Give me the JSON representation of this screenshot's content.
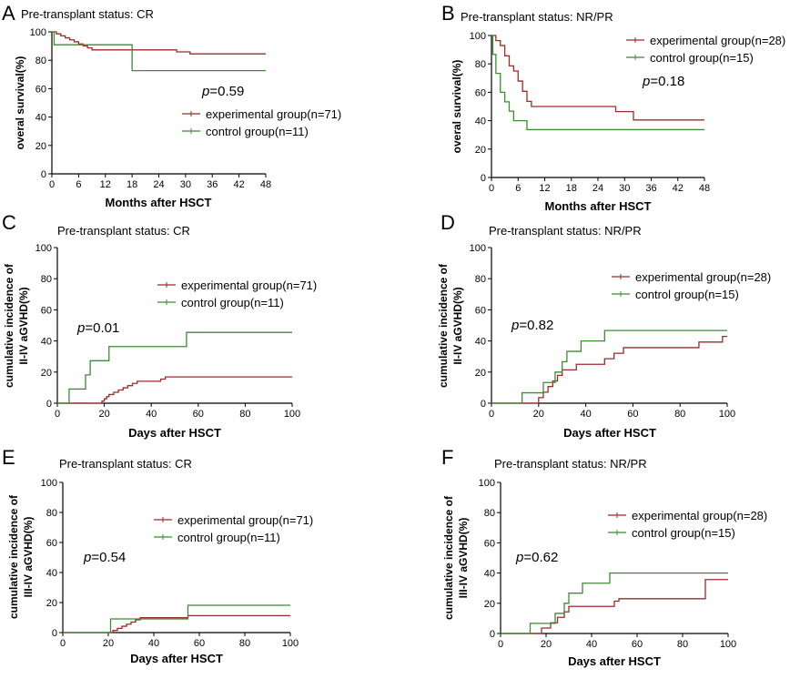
{
  "colors": {
    "experimental": "#9c2b2b",
    "control": "#3d8b33",
    "axis": "#000000"
  },
  "chart_data": [
    {
      "panel": "A",
      "type": "line",
      "subtitle": "Pre-transplant status: CR",
      "xlabel": "Months after HSCT",
      "ylabel": [
        "overal survival(%)"
      ],
      "xlim": [
        0,
        48
      ],
      "ylim": [
        0,
        100
      ],
      "xticks": [
        0,
        6,
        12,
        18,
        24,
        30,
        36,
        42,
        48
      ],
      "yticks": [
        0,
        20,
        40,
        60,
        80,
        100
      ],
      "p_prefix": "p",
      "p_value": "=0.59",
      "p_at": [
        22,
        58
      ],
      "legend_at": [
        22,
        42
      ],
      "series": [
        {
          "name": "experimental group(n=71)",
          "color_key": "experimental",
          "steps": [
            [
              0,
              100
            ],
            [
              1,
              98.6
            ],
            [
              2,
              97.2
            ],
            [
              3,
              95.8
            ],
            [
              4,
              94.4
            ],
            [
              5,
              93
            ],
            [
              6,
              91.5
            ],
            [
              7,
              90.1
            ],
            [
              8,
              88.7
            ],
            [
              9,
              87.3
            ],
            [
              28,
              85.9
            ],
            [
              31,
              84.5
            ],
            [
              48,
              84.5
            ]
          ]
        },
        {
          "name": "control group(n=11)",
          "color_key": "control",
          "steps": [
            [
              0,
              100
            ],
            [
              0.5,
              90.9
            ],
            [
              18,
              72.7
            ],
            [
              48,
              72.7
            ]
          ]
        }
      ]
    },
    {
      "panel": "B",
      "type": "line",
      "subtitle": "Pre-transplant status: NR/PR",
      "xlabel": "Months after HSCT",
      "ylabel": [
        "overal survival(%)"
      ],
      "xlim": [
        0,
        48
      ],
      "ylim": [
        0,
        100
      ],
      "xticks": [
        0,
        6,
        12,
        18,
        24,
        30,
        36,
        42,
        48
      ],
      "yticks": [
        0,
        20,
        40,
        60,
        80,
        100
      ],
      "p_prefix": "p",
      "p_value": "=0.18",
      "p_at": [
        25,
        65
      ],
      "legend_at": [
        22,
        95
      ],
      "series": [
        {
          "name": "experimental group(n=28)",
          "color_key": "experimental",
          "steps": [
            [
              0,
              100
            ],
            [
              1,
              96.4
            ],
            [
              2,
              92.9
            ],
            [
              3,
              85.7
            ],
            [
              4,
              78.6
            ],
            [
              5,
              75
            ],
            [
              6,
              67.9
            ],
            [
              7,
              60.7
            ],
            [
              8,
              53.6
            ],
            [
              9,
              50
            ],
            [
              28,
              46.4
            ],
            [
              32,
              40.5
            ],
            [
              48,
              40.5
            ]
          ]
        },
        {
          "name": "control group(n=15)",
          "color_key": "control",
          "steps": [
            [
              0,
              100
            ],
            [
              0.3,
              86.7
            ],
            [
              1,
              73.3
            ],
            [
              2,
              60
            ],
            [
              3,
              53.3
            ],
            [
              4,
              46.7
            ],
            [
              5,
              40
            ],
            [
              8,
              33.7
            ],
            [
              48,
              33.7
            ]
          ]
        }
      ]
    },
    {
      "panel": "C",
      "type": "line",
      "subtitle": "Pre-transplant status: CR",
      "xlabel": "Days after HSCT",
      "ylabel": [
        "cumulative incidence of",
        "II-IV aGVHD(%)"
      ],
      "xlim": [
        0,
        100
      ],
      "ylim": [
        0,
        100
      ],
      "xticks": [
        0,
        20,
        40,
        60,
        80,
        100
      ],
      "yticks": [
        0,
        20,
        40,
        60,
        80,
        100
      ],
      "p_prefix": "p",
      "p_value": "=0.01",
      "p_at": [
        10,
        46
      ],
      "legend_at": [
        40,
        80
      ],
      "series": [
        {
          "name": "experimental group(n=71)",
          "color_key": "experimental",
          "steps": [
            [
              0,
              0
            ],
            [
              18,
              0
            ],
            [
              19,
              1.4
            ],
            [
              20,
              2.8
            ],
            [
              21,
              4.2
            ],
            [
              22,
              5.6
            ],
            [
              24,
              7
            ],
            [
              26,
              8.5
            ],
            [
              28,
              9.9
            ],
            [
              30,
              11.3
            ],
            [
              32,
              12.7
            ],
            [
              34,
              14.1
            ],
            [
              44,
              15.5
            ],
            [
              46,
              16.9
            ],
            [
              100,
              16.9
            ]
          ]
        },
        {
          "name": "control group(n=11)",
          "color_key": "control",
          "steps": [
            [
              0,
              0
            ],
            [
              5,
              9.1
            ],
            [
              12,
              18.2
            ],
            [
              14,
              27.3
            ],
            [
              22,
              36.4
            ],
            [
              55,
              45.5
            ],
            [
              100,
              45.5
            ]
          ]
        }
      ]
    },
    {
      "panel": "D",
      "type": "line",
      "subtitle": "Pre-transplant status: NR/PR",
      "xlabel": "Days after HSCT",
      "ylabel": [
        "cumulative incidence of",
        "II-IV aGVHD(%)"
      ],
      "xlim": [
        0,
        100
      ],
      "ylim": [
        0,
        100
      ],
      "xticks": [
        0,
        20,
        40,
        60,
        80,
        100
      ],
      "yticks": [
        0,
        20,
        40,
        60,
        80,
        100
      ],
      "p_prefix": "p",
      "p_value": "=0.82",
      "p_at": [
        8,
        48
      ],
      "legend_at": [
        48,
        84
      ],
      "series": [
        {
          "name": "experimental group(n=28)",
          "color_key": "experimental",
          "steps": [
            [
              0,
              0
            ],
            [
              18,
              0
            ],
            [
              20,
              3.6
            ],
            [
              22,
              7.1
            ],
            [
              24,
              10.7
            ],
            [
              26,
              14.3
            ],
            [
              28,
              17.9
            ],
            [
              30,
              21.4
            ],
            [
              36,
              25
            ],
            [
              48,
              28.6
            ],
            [
              52,
              32.1
            ],
            [
              56,
              35.7
            ],
            [
              88,
              39.3
            ],
            [
              98,
              42.9
            ],
            [
              100,
              42.9
            ]
          ]
        },
        {
          "name": "control group(n=15)",
          "color_key": "control",
          "steps": [
            [
              0,
              0
            ],
            [
              13,
              6.7
            ],
            [
              22,
              13.3
            ],
            [
              27,
              20
            ],
            [
              30,
              26.7
            ],
            [
              32,
              33.3
            ],
            [
              38,
              40
            ],
            [
              48,
              46.7
            ],
            [
              100,
              46.7
            ]
          ]
        }
      ]
    },
    {
      "panel": "E",
      "type": "line",
      "subtitle": "Pre-transplant status: CR",
      "xlabel": "Days after HSCT",
      "ylabel": [
        "cumulative incidence of",
        "III-IV aGVHD(%)"
      ],
      "xlim": [
        0,
        100
      ],
      "ylim": [
        0,
        100
      ],
      "xticks": [
        0,
        20,
        40,
        60,
        80,
        100
      ],
      "yticks": [
        0,
        20,
        40,
        60,
        80,
        100
      ],
      "p_prefix": "p",
      "p_value": "=0.54",
      "p_at": [
        8,
        38
      ],
      "legend_at": [
        40,
        75
      ],
      "series": [
        {
          "name": "experimental group(n=71)",
          "color_key": "experimental",
          "steps": [
            [
              0,
              0
            ],
            [
              20,
              0
            ],
            [
              22,
              1.4
            ],
            [
              24,
              2.8
            ],
            [
              26,
              4.2
            ],
            [
              28,
              5.6
            ],
            [
              30,
              7
            ],
            [
              32,
              8.5
            ],
            [
              34,
              9.9
            ],
            [
              55,
              11.3
            ],
            [
              100,
              11.3
            ]
          ]
        },
        {
          "name": "control group(n=11)",
          "color_key": "control",
          "steps": [
            [
              0,
              0
            ],
            [
              21,
              9.1
            ],
            [
              55,
              18.2
            ],
            [
              100,
              18.2
            ]
          ]
        }
      ]
    },
    {
      "panel": "F",
      "type": "line",
      "subtitle": "Pre-transplant status: NR/PR",
      "xlabel": "Days after HSCT",
      "ylabel": [
        "cumulative incidence of",
        "III-IV aGVHD(%)"
      ],
      "xlim": [
        0,
        100
      ],
      "ylim": [
        0,
        100
      ],
      "xticks": [
        0,
        20,
        40,
        60,
        80,
        100
      ],
      "yticks": [
        0,
        20,
        40,
        60,
        80,
        100
      ],
      "p_prefix": "p",
      "p_value": "=0.62",
      "p_at": [
        6,
        48
      ],
      "legend_at": [
        47,
        84
      ],
      "series": [
        {
          "name": "experimental group(n=28)",
          "color_key": "experimental",
          "steps": [
            [
              0,
              0
            ],
            [
              17,
              0
            ],
            [
              18,
              3.6
            ],
            [
              22,
              7.1
            ],
            [
              25,
              10.7
            ],
            [
              28,
              14.3
            ],
            [
              30,
              17.9
            ],
            [
              50,
              21.4
            ],
            [
              52,
              23
            ],
            [
              90,
              35.7
            ],
            [
              100,
              35.7
            ]
          ]
        },
        {
          "name": "control group(n=15)",
          "color_key": "control",
          "steps": [
            [
              0,
              0
            ],
            [
              13,
              6.7
            ],
            [
              24,
              13.3
            ],
            [
              28,
              20
            ],
            [
              30,
              26.7
            ],
            [
              36,
              33.3
            ],
            [
              48,
              40
            ],
            [
              100,
              40
            ]
          ]
        }
      ]
    }
  ]
}
